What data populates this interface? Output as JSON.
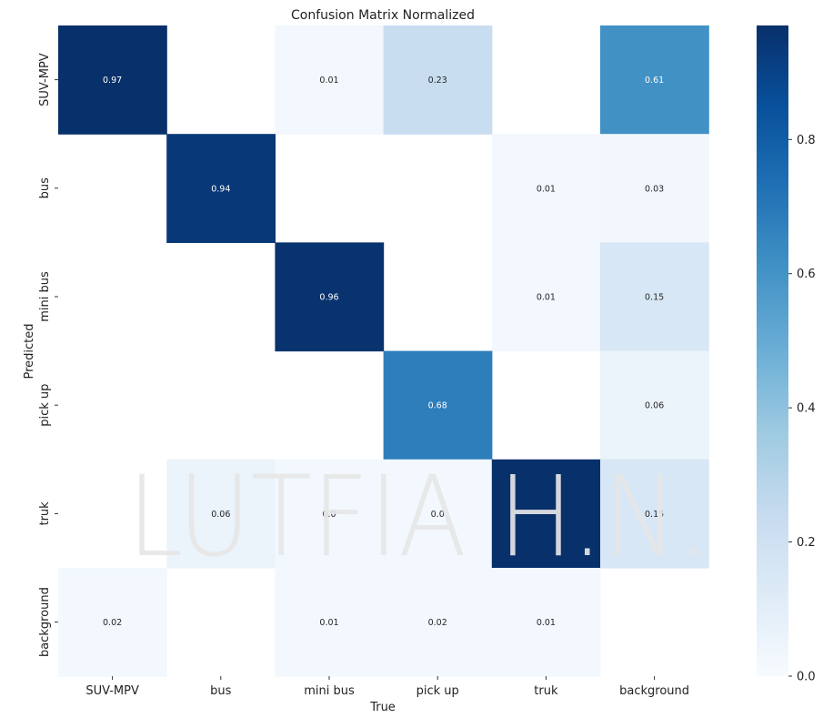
{
  "chart_data": {
    "type": "heatmap",
    "title": "Confusion Matrix Normalized",
    "xlabel": "True",
    "ylabel": "Predicted",
    "x_categories": [
      "SUV-MPV",
      "bus",
      "mini bus",
      "pick up",
      "truk",
      "background"
    ],
    "y_categories": [
      "SUV-MPV",
      "bus",
      "mini bus",
      "pick up",
      "truk",
      "background"
    ],
    "values": [
      [
        0.97,
        null,
        0.01,
        0.23,
        null,
        0.61
      ],
      [
        null,
        0.94,
        null,
        null,
        0.01,
        0.03
      ],
      [
        null,
        null,
        0.96,
        null,
        0.01,
        0.15
      ],
      [
        null,
        null,
        null,
        0.68,
        null,
        0.06
      ],
      [
        null,
        0.06,
        0.0,
        0.0,
        0.99,
        0.15
      ],
      [
        0.02,
        null,
        0.01,
        0.02,
        0.01,
        null
      ]
    ],
    "cell_labels": [
      [
        "0.97",
        "",
        "0.01",
        "0.23",
        "",
        "0.61"
      ],
      [
        "",
        "0.94",
        "",
        "",
        "0.01",
        "0.03"
      ],
      [
        "",
        "",
        "0.96",
        "",
        "0.01",
        "0.15"
      ],
      [
        "",
        "",
        "",
        "0.68",
        "",
        "0.06"
      ],
      [
        "",
        "0.06",
        "0.0",
        "0.0",
        "",
        "0.15"
      ],
      [
        "0.02",
        "",
        "0.01",
        "0.02",
        "0.01",
        ""
      ]
    ],
    "colorbar": {
      "ticks": [
        "0.0",
        "0.2",
        "0.4",
        "0.6",
        "0.8"
      ],
      "range": [
        0,
        0.97
      ],
      "colormap": "Blues"
    },
    "watermark": "LUTFIA H.N."
  }
}
